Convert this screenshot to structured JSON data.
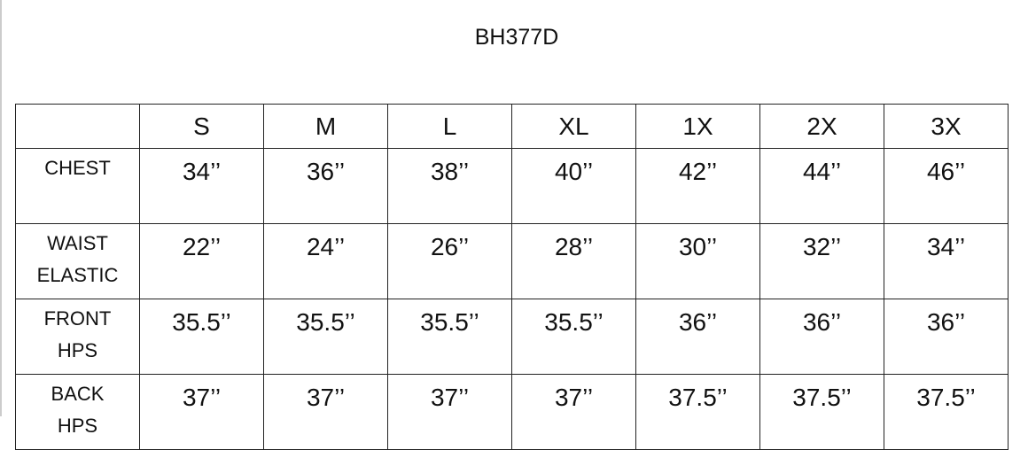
{
  "title": "BH377D",
  "sizes": [
    "S",
    "M",
    "L",
    "XL",
    "1X",
    "2X",
    "3X"
  ],
  "rows": [
    {
      "label_lines": [
        "CHEST"
      ],
      "values": [
        "34’’",
        "36’’",
        "38’’",
        "40’’",
        "42’’",
        "44’’",
        "46’’"
      ]
    },
    {
      "label_lines": [
        "WAIST",
        "ELASTIC"
      ],
      "values": [
        "22’’",
        "24’’",
        "26’’",
        "28’’",
        "30’’",
        "32’’",
        "34’’"
      ]
    },
    {
      "label_lines": [
        "FRONT",
        "HPS"
      ],
      "values": [
        "35.5’’",
        "35.5’’",
        "35.5’’",
        "35.5’’",
        "36’’",
        "36’’",
        "36’’"
      ]
    },
    {
      "label_lines": [
        "BACK",
        "HPS"
      ],
      "values": [
        "37’’",
        "37’’",
        "37’’",
        "37’’",
        "37.5’’",
        "37.5’’",
        "37.5’’"
      ]
    }
  ]
}
